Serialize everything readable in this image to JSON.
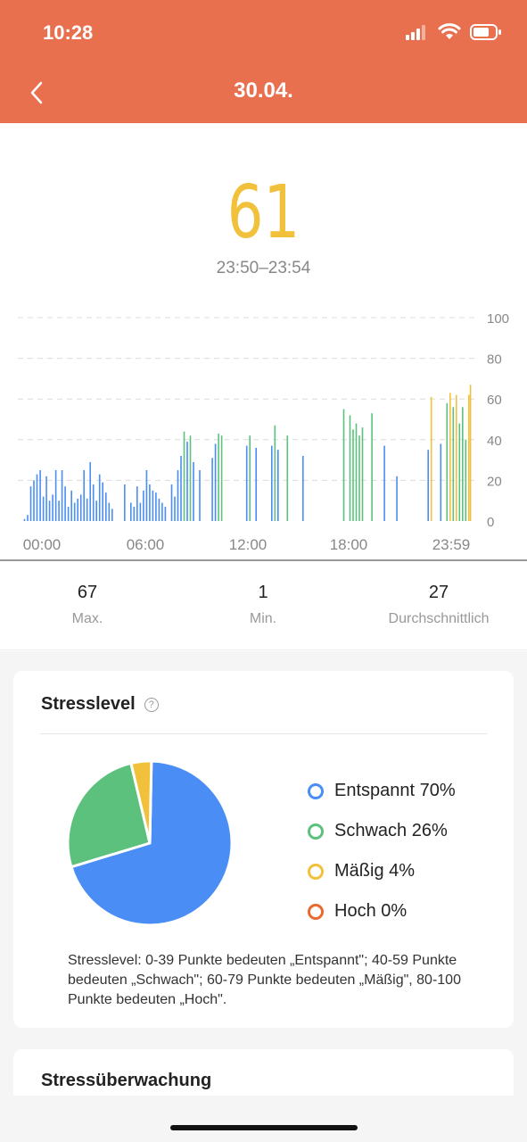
{
  "status_bar": {
    "time": "10:28"
  },
  "nav": {
    "title": "30.04."
  },
  "summary": {
    "value": "61",
    "time_range": "23:50–23:54"
  },
  "chart_data": {
    "type": "bar",
    "y_ticks": [
      "100",
      "80",
      "60",
      "40",
      "20",
      "0"
    ],
    "ylim": [
      0,
      100
    ],
    "x_ticks": [
      "00:00",
      "06:00",
      "12:00",
      "18:00",
      "23:59"
    ],
    "level_colors": {
      "relaxed": "#4a8df5",
      "weak": "#5bc17d",
      "moderate": "#f2c13b",
      "high": "#e86a2c"
    },
    "samples": [
      {
        "t": "00:10",
        "v": 1
      },
      {
        "t": "00:20",
        "v": 3
      },
      {
        "t": "00:30",
        "v": 17
      },
      {
        "t": "00:40",
        "v": 20
      },
      {
        "t": "00:50",
        "v": 23
      },
      {
        "t": "01:00",
        "v": 25
      },
      {
        "t": "01:10",
        "v": 12
      },
      {
        "t": "01:20",
        "v": 22
      },
      {
        "t": "01:30",
        "v": 10
      },
      {
        "t": "01:40",
        "v": 13
      },
      {
        "t": "01:50",
        "v": 25
      },
      {
        "t": "02:00",
        "v": 10
      },
      {
        "t": "02:10",
        "v": 25
      },
      {
        "t": "02:20",
        "v": 17
      },
      {
        "t": "02:30",
        "v": 7
      },
      {
        "t": "02:40",
        "v": 15
      },
      {
        "t": "02:50",
        "v": 9
      },
      {
        "t": "03:00",
        "v": 11
      },
      {
        "t": "03:10",
        "v": 13
      },
      {
        "t": "03:20",
        "v": 25
      },
      {
        "t": "03:30",
        "v": 11
      },
      {
        "t": "03:40",
        "v": 29
      },
      {
        "t": "03:50",
        "v": 18
      },
      {
        "t": "04:00",
        "v": 10
      },
      {
        "t": "04:10",
        "v": 23
      },
      {
        "t": "04:20",
        "v": 19
      },
      {
        "t": "04:30",
        "v": 14
      },
      {
        "t": "04:40",
        "v": 9
      },
      {
        "t": "04:50",
        "v": 6
      },
      {
        "t": "05:30",
        "v": 18
      },
      {
        "t": "05:50",
        "v": 9
      },
      {
        "t": "06:00",
        "v": 7
      },
      {
        "t": "06:10",
        "v": 17
      },
      {
        "t": "06:20",
        "v": 9
      },
      {
        "t": "06:30",
        "v": 15
      },
      {
        "t": "06:40",
        "v": 25
      },
      {
        "t": "06:50",
        "v": 18
      },
      {
        "t": "07:00",
        "v": 15
      },
      {
        "t": "07:10",
        "v": 14
      },
      {
        "t": "07:20",
        "v": 11
      },
      {
        "t": "07:30",
        "v": 9
      },
      {
        "t": "07:40",
        "v": 7
      },
      {
        "t": "08:00",
        "v": 18
      },
      {
        "t": "08:10",
        "v": 12
      },
      {
        "t": "08:20",
        "v": 25
      },
      {
        "t": "08:30",
        "v": 32
      },
      {
        "t": "08:40",
        "v": 44
      },
      {
        "t": "08:50",
        "v": 39
      },
      {
        "t": "09:00",
        "v": 42
      },
      {
        "t": "09:10",
        "v": 29
      },
      {
        "t": "09:30",
        "v": 25
      },
      {
        "t": "10:10",
        "v": 31
      },
      {
        "t": "10:20",
        "v": 38
      },
      {
        "t": "10:30",
        "v": 43
      },
      {
        "t": "10:40",
        "v": 42
      },
      {
        "t": "12:00",
        "v": 37
      },
      {
        "t": "12:10",
        "v": 42
      },
      {
        "t": "12:30",
        "v": 36
      },
      {
        "t": "13:20",
        "v": 37
      },
      {
        "t": "13:30",
        "v": 47
      },
      {
        "t": "13:40",
        "v": 35
      },
      {
        "t": "14:10",
        "v": 42
      },
      {
        "t": "15:00",
        "v": 32
      },
      {
        "t": "17:10",
        "v": 55
      },
      {
        "t": "17:30",
        "v": 52
      },
      {
        "t": "17:40",
        "v": 45
      },
      {
        "t": "17:50",
        "v": 48
      },
      {
        "t": "18:00",
        "v": 42
      },
      {
        "t": "18:10",
        "v": 46
      },
      {
        "t": "18:40",
        "v": 53
      },
      {
        "t": "19:20",
        "v": 37
      },
      {
        "t": "20:00",
        "v": 22
      },
      {
        "t": "21:40",
        "v": 35
      },
      {
        "t": "21:50",
        "v": 61
      },
      {
        "t": "22:20",
        "v": 38
      },
      {
        "t": "22:40",
        "v": 58
      },
      {
        "t": "22:50",
        "v": 63
      },
      {
        "t": "23:00",
        "v": 56
      },
      {
        "t": "23:10",
        "v": 62
      },
      {
        "t": "23:20",
        "v": 48
      },
      {
        "t": "23:30",
        "v": 56
      },
      {
        "t": "23:40",
        "v": 40
      },
      {
        "t": "23:50",
        "v": 62
      },
      {
        "t": "23:55",
        "v": 67
      }
    ]
  },
  "stats": [
    {
      "value": "67",
      "label": "Max."
    },
    {
      "value": "1",
      "label": "Min."
    },
    {
      "value": "27",
      "label": "Durchschnittlich"
    }
  ],
  "stress_card": {
    "title": "Stresslevel",
    "help_icon": "question-icon",
    "legend": [
      {
        "label": "Entspannt 70%",
        "color": "#4a8df5",
        "percent": 70
      },
      {
        "label": "Schwach 26%",
        "color": "#5bc17d",
        "percent": 26
      },
      {
        "label": "Mäßig 4%",
        "color": "#f2c13b",
        "percent": 4
      },
      {
        "label": "Hoch 0%",
        "color": "#e86a2c",
        "percent": 0
      }
    ],
    "note": "Stresslevel: 0-39 Punkte bedeuten „Entspannt\"; 40-59 Punkte bedeuten „Schwach\"; 60-79 Punkte bedeuten „Mäßig\", 80-100 Punkte bedeuten „Hoch\"."
  },
  "monitoring_card": {
    "title": "Stressüberwachung"
  }
}
